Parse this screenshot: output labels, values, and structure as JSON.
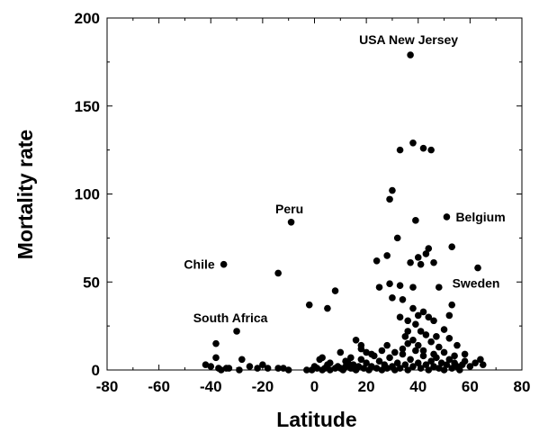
{
  "chart_data": {
    "type": "scatter",
    "title": "",
    "xlabel": "Latitude",
    "ylabel": "Mortality rate",
    "xlim": [
      -80,
      80
    ],
    "ylim": [
      0,
      200
    ],
    "xticks": [
      -80,
      -60,
      -40,
      -20,
      0,
      20,
      40,
      60,
      80
    ],
    "yticks": [
      0,
      50,
      100,
      150,
      200
    ],
    "grid": false,
    "marker_color": "#000000",
    "annotations": [
      {
        "text": "USA New Jersey",
        "x": 37,
        "y": 179
      },
      {
        "text": "Peru",
        "x": -9,
        "y": 84
      },
      {
        "text": "Belgium",
        "x": 51,
        "y": 87
      },
      {
        "text": "Chile",
        "x": -35,
        "y": 60
      },
      {
        "text": "Sweden",
        "x": 63,
        "y": 58
      },
      {
        "text": "South Africa",
        "x": -30,
        "y": 22
      }
    ],
    "points": [
      [
        37,
        179
      ],
      [
        38,
        129
      ],
      [
        33,
        125
      ],
      [
        42,
        126
      ],
      [
        45,
        125
      ],
      [
        30,
        102
      ],
      [
        29,
        97
      ],
      [
        -9,
        84
      ],
      [
        39,
        85
      ],
      [
        51,
        87
      ],
      [
        32,
        75
      ],
      [
        44,
        69
      ],
      [
        43,
        66
      ],
      [
        40,
        64
      ],
      [
        28,
        65
      ],
      [
        53,
        70
      ],
      [
        -35,
        60
      ],
      [
        63,
        58
      ],
      [
        24,
        62
      ],
      [
        37,
        61
      ],
      [
        41,
        60
      ],
      [
        46,
        61
      ],
      [
        -14,
        55
      ],
      [
        29,
        49
      ],
      [
        25,
        47
      ],
      [
        33,
        48
      ],
      [
        8,
        45
      ],
      [
        38,
        47
      ],
      [
        48,
        47
      ],
      [
        -2,
        37
      ],
      [
        5,
        35
      ],
      [
        34,
        40
      ],
      [
        30,
        41
      ],
      [
        53,
        37
      ],
      [
        38,
        35
      ],
      [
        42,
        33
      ],
      [
        33,
        30
      ],
      [
        40,
        31
      ],
      [
        44,
        30
      ],
      [
        46,
        28
      ],
      [
        52,
        31
      ],
      [
        36,
        28
      ],
      [
        39,
        26
      ],
      [
        -30,
        22
      ],
      [
        36,
        22
      ],
      [
        41,
        22
      ],
      [
        50,
        23
      ],
      [
        35,
        19
      ],
      [
        43,
        20
      ],
      [
        47,
        19
      ],
      [
        52,
        18
      ],
      [
        -38,
        15
      ],
      [
        16,
        17
      ],
      [
        18,
        14
      ],
      [
        38,
        17
      ],
      [
        45,
        16
      ],
      [
        40,
        14
      ],
      [
        48,
        13
      ],
      [
        55,
        14
      ],
      [
        -38,
        7
      ],
      [
        -28,
        6
      ],
      [
        -40,
        2
      ],
      [
        -42,
        3
      ],
      [
        -37,
        1
      ],
      [
        -34,
        1
      ],
      [
        -25,
        2
      ],
      [
        -22,
        1
      ],
      [
        -18,
        1
      ],
      [
        -14,
        1
      ],
      [
        -12,
        1
      ],
      [
        -10,
        0
      ],
      [
        -3,
        0
      ],
      [
        -1,
        0
      ],
      [
        0,
        2
      ],
      [
        1,
        1
      ],
      [
        3,
        0
      ],
      [
        4,
        1
      ],
      [
        5,
        3
      ],
      [
        6,
        0
      ],
      [
        8,
        1
      ],
      [
        9,
        2
      ],
      [
        10,
        1
      ],
      [
        11,
        0
      ],
      [
        12,
        2
      ],
      [
        13,
        4
      ],
      [
        14,
        1
      ],
      [
        15,
        3
      ],
      [
        16,
        0
      ],
      [
        17,
        2
      ],
      [
        18,
        6
      ],
      [
        19,
        1
      ],
      [
        20,
        4
      ],
      [
        21,
        0
      ],
      [
        22,
        2
      ],
      [
        23,
        8
      ],
      [
        24,
        1
      ],
      [
        25,
        5
      ],
      [
        26,
        0
      ],
      [
        27,
        3
      ],
      [
        28,
        1
      ],
      [
        29,
        7
      ],
      [
        30,
        2
      ],
      [
        31,
        0
      ],
      [
        32,
        4
      ],
      [
        33,
        1
      ],
      [
        34,
        9
      ],
      [
        35,
        3
      ],
      [
        36,
        0
      ],
      [
        37,
        6
      ],
      [
        38,
        2
      ],
      [
        39,
        11
      ],
      [
        40,
        4
      ],
      [
        41,
        1
      ],
      [
        42,
        8
      ],
      [
        43,
        3
      ],
      [
        44,
        0
      ],
      [
        45,
        5
      ],
      [
        46,
        2
      ],
      [
        47,
        7
      ],
      [
        48,
        1
      ],
      [
        49,
        4
      ],
      [
        50,
        0
      ],
      [
        51,
        3
      ],
      [
        52,
        6
      ],
      [
        53,
        1
      ],
      [
        54,
        4
      ],
      [
        55,
        2
      ],
      [
        56,
        0
      ],
      [
        57,
        3
      ],
      [
        58,
        5
      ],
      [
        60,
        2
      ],
      [
        62,
        4
      ],
      [
        64,
        6
      ],
      [
        65,
        3
      ],
      [
        -36,
        0
      ],
      [
        -33,
        1
      ],
      [
        -29,
        0
      ],
      [
        -20,
        3
      ],
      [
        2,
        6
      ],
      [
        6,
        4
      ],
      [
        10,
        10
      ],
      [
        14,
        7
      ],
      [
        18,
        12
      ],
      [
        22,
        9
      ],
      [
        26,
        11
      ],
      [
        28,
        14
      ],
      [
        31,
        10
      ],
      [
        34,
        12
      ],
      [
        36,
        15
      ],
      [
        42,
        11
      ],
      [
        46,
        9
      ],
      [
        50,
        10
      ],
      [
        54,
        8
      ],
      [
        58,
        9
      ],
      [
        12,
        5
      ],
      [
        20,
        10
      ],
      [
        3,
        7
      ],
      [
        15,
        1
      ]
    ]
  }
}
